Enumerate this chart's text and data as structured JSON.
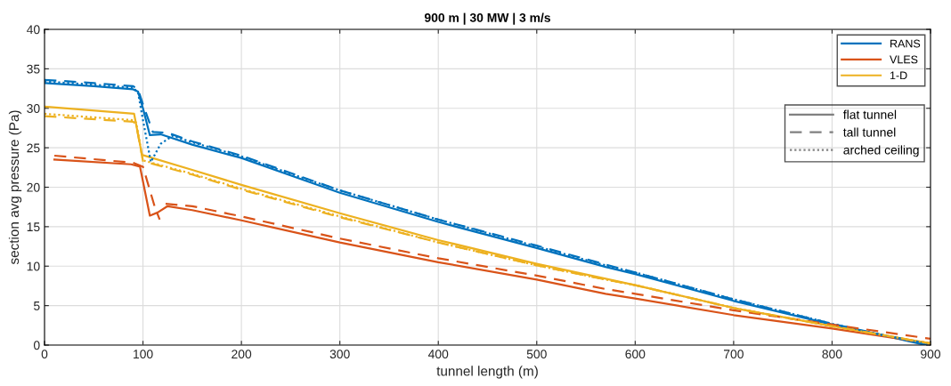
{
  "chart_data": {
    "type": "line",
    "title": "900 m | 30 MW | 3 m/s",
    "xlabel": "tunnel length (m)",
    "ylabel": "section avg pressure (Pa)",
    "xlim": [
      0,
      900
    ],
    "ylim": [
      0,
      40
    ],
    "xticks": [
      0,
      100,
      200,
      300,
      400,
      500,
      600,
      700,
      800,
      900
    ],
    "yticks": [
      0,
      5,
      10,
      15,
      20,
      25,
      30,
      35,
      40
    ],
    "grid": true,
    "legend": "top right",
    "series": [
      {
        "name": "RANS",
        "color": "#0072bd",
        "line_style": "solid",
        "x": [
          0,
          50,
          90,
          95,
          100,
          107,
          118,
          150,
          200,
          250,
          300,
          400,
          500,
          570,
          600,
          700,
          800,
          850,
          895
        ],
        "values": [
          33.2,
          32.8,
          32.4,
          32.1,
          30.0,
          26.6,
          26.7,
          25.4,
          23.7,
          21.5,
          19.3,
          15.6,
          12.3,
          9.9,
          9.0,
          5.6,
          2.6,
          1.3,
          0.0
        ]
      },
      {
        "name": "VLES",
        "color": "#d95319",
        "line_style": "solid",
        "x": [
          10,
          88,
          97,
          107,
          115,
          125,
          150,
          200,
          300,
          400,
          500,
          570,
          600,
          700,
          800,
          900
        ],
        "values": [
          23.5,
          22.9,
          22.6,
          16.4,
          16.8,
          17.6,
          17.1,
          15.8,
          13.0,
          10.5,
          8.3,
          6.5,
          5.9,
          3.8,
          2.1,
          0.2
        ]
      },
      {
        "name": "1-D",
        "color": "#edb120",
        "line_style": "solid",
        "x": [
          0,
          91,
          99,
          150,
          200,
          300,
          400,
          500,
          570,
          600,
          700,
          800,
          900
        ],
        "values": [
          30.2,
          29.3,
          24.1,
          22.2,
          20.3,
          16.7,
          13.3,
          10.3,
          8.4,
          7.6,
          4.7,
          2.4,
          0.2
        ]
      },
      {
        "color": "#0072bd",
        "line_style": "dashed",
        "x": [
          0,
          50,
          90,
          95,
          100,
          110,
          125,
          150,
          200,
          250,
          300,
          400,
          500,
          570,
          600,
          700,
          800,
          850,
          900
        ],
        "values": [
          33.6,
          33.2,
          32.8,
          32.4,
          30.5,
          27.0,
          26.9,
          25.8,
          24.0,
          21.8,
          19.6,
          15.9,
          12.6,
          10.2,
          9.2,
          5.8,
          2.7,
          1.3,
          0.1
        ]
      },
      {
        "color": "#0072bd",
        "line_style": "dotted",
        "x": [
          0,
          50,
          90,
          95,
          100,
          108,
          118,
          130,
          150,
          200,
          250,
          300,
          400,
          500,
          570,
          600,
          700,
          800,
          850,
          900
        ],
        "values": [
          33.4,
          33.0,
          32.6,
          32.0,
          28.5,
          23.2,
          25.5,
          26.5,
          25.7,
          23.9,
          21.7,
          19.6,
          15.9,
          12.5,
          10.1,
          9.2,
          5.8,
          2.7,
          1.3,
          0.1
        ]
      },
      {
        "color": "#d95319",
        "line_style": "dashed",
        "x": [
          10,
          90,
          100,
          112,
          117,
          120,
          123,
          150,
          200,
          300,
          400,
          500,
          570,
          600,
          700,
          800,
          900
        ],
        "values": [
          24.0,
          23.1,
          22.6,
          17.5,
          15.9,
          null,
          17.9,
          17.6,
          16.3,
          13.5,
          11.0,
          8.8,
          7.1,
          6.5,
          4.4,
          2.6,
          0.8
        ]
      },
      {
        "color": "#edb120",
        "line_style": "dashed",
        "x": [
          0,
          90,
          93,
          100,
          150,
          200,
          300,
          400,
          500,
          570,
          600,
          700,
          800,
          900
        ],
        "values": [
          29.0,
          28.3,
          28.0,
          23.3,
          21.6,
          19.7,
          16.2,
          13.0,
          10.1,
          8.3,
          7.6,
          4.7,
          2.4,
          0.2
        ]
      },
      {
        "color": "#edb120",
        "line_style": "dotted",
        "x": [
          0,
          90,
          93,
          100,
          150,
          200,
          300,
          400,
          500,
          570,
          600,
          700,
          800,
          900
        ],
        "values": [
          29.3,
          28.5,
          28.2,
          23.4,
          21.7,
          19.8,
          16.3,
          13.0,
          10.1,
          8.3,
          7.6,
          4.7,
          2.4,
          0.2
        ]
      },
      {
        "name": "flat tunnel",
        "color": "#808080",
        "line_style": "solid"
      },
      {
        "name": "tall tunnel",
        "color": "#808080",
        "line_style": "dashed"
      },
      {
        "name": "arched ceiling",
        "color": "#808080",
        "line_style": "dotted"
      }
    ]
  }
}
